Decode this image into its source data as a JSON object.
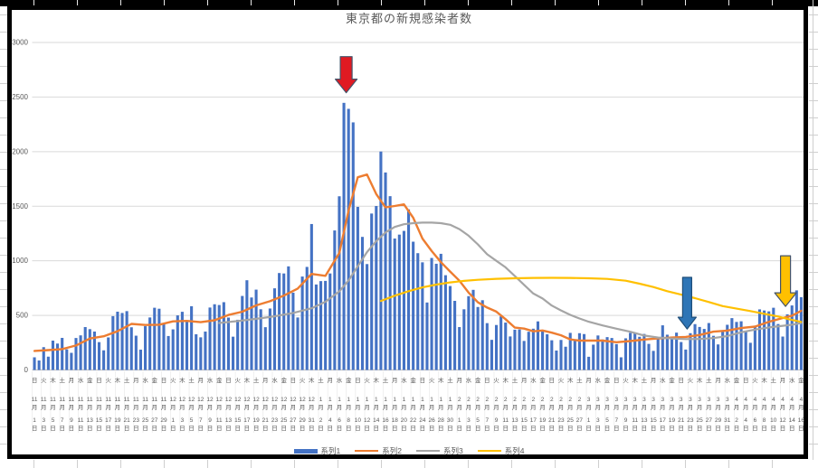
{
  "colors": {
    "grid": "#D9D9D9",
    "axis_line": "#BFBFBF",
    "text": "#595959",
    "label_separator": "#ECECEC",
    "chart_border": "#000000"
  },
  "chart_data": {
    "type": "bar+line",
    "title": "東京都の新規感染者数",
    "ylim": [
      0,
      3000
    ],
    "y_ticks": [
      0,
      500,
      1000,
      1500,
      2000,
      2500,
      3000
    ],
    "x_range": "11月1日〜4月16日 (毎日, ラベルは2日毎)",
    "legend_position": "bottom",
    "grid": "horizontal",
    "x_labels": [
      [
        "日",
        11,
        1
      ],
      [
        "火",
        11,
        3
      ],
      [
        "木",
        11,
        5
      ],
      [
        "土",
        11,
        7
      ],
      [
        "月",
        11,
        9
      ],
      [
        "水",
        11,
        11
      ],
      [
        "金",
        11,
        13
      ],
      [
        "日",
        11,
        15
      ],
      [
        "火",
        11,
        17
      ],
      [
        "木",
        11,
        19
      ],
      [
        "土",
        11,
        21
      ],
      [
        "月",
        11,
        23
      ],
      [
        "水",
        11,
        25
      ],
      [
        "金",
        11,
        27
      ],
      [
        "日",
        11,
        29
      ],
      [
        "火",
        12,
        1
      ],
      [
        "木",
        12,
        3
      ],
      [
        "土",
        12,
        5
      ],
      [
        "月",
        12,
        7
      ],
      [
        "水",
        12,
        9
      ],
      [
        "金",
        12,
        11
      ],
      [
        "日",
        12,
        13
      ],
      [
        "火",
        12,
        15
      ],
      [
        "木",
        12,
        17
      ],
      [
        "土",
        12,
        19
      ],
      [
        "月",
        12,
        21
      ],
      [
        "水",
        12,
        23
      ],
      [
        "金",
        12,
        25
      ],
      [
        "日",
        12,
        27
      ],
      [
        "火",
        12,
        29
      ],
      [
        "木",
        12,
        31
      ],
      [
        "土",
        1,
        2
      ],
      [
        "月",
        1,
        4
      ],
      [
        "水",
        1,
        6
      ],
      [
        "金",
        1,
        8
      ],
      [
        "日",
        1,
        10
      ],
      [
        "火",
        1,
        12
      ],
      [
        "木",
        1,
        14
      ],
      [
        "土",
        1,
        16
      ],
      [
        "月",
        1,
        18
      ],
      [
        "水",
        1,
        20
      ],
      [
        "金",
        1,
        22
      ],
      [
        "日",
        1,
        24
      ],
      [
        "火",
        1,
        26
      ],
      [
        "木",
        1,
        28
      ],
      [
        "土",
        1,
        30
      ],
      [
        "月",
        2,
        1
      ],
      [
        "水",
        2,
        3
      ],
      [
        "金",
        2,
        5
      ],
      [
        "日",
        2,
        7
      ],
      [
        "火",
        2,
        9
      ],
      [
        "木",
        2,
        11
      ],
      [
        "土",
        2,
        13
      ],
      [
        "月",
        2,
        15
      ],
      [
        "水",
        2,
        17
      ],
      [
        "金",
        2,
        19
      ],
      [
        "日",
        2,
        21
      ],
      [
        "火",
        2,
        23
      ],
      [
        "木",
        2,
        25
      ],
      [
        "土",
        2,
        27
      ],
      [
        "月",
        3,
        1
      ],
      [
        "水",
        3,
        3
      ],
      [
        "金",
        3,
        5
      ],
      [
        "日",
        3,
        7
      ],
      [
        "火",
        3,
        9
      ],
      [
        "木",
        3,
        11
      ],
      [
        "土",
        3,
        13
      ],
      [
        "月",
        3,
        15
      ],
      [
        "水",
        3,
        17
      ],
      [
        "金",
        3,
        19
      ],
      [
        "日",
        3,
        21
      ],
      [
        "火",
        3,
        23
      ],
      [
        "木",
        3,
        25
      ],
      [
        "土",
        3,
        27
      ],
      [
        "月",
        3,
        29
      ],
      [
        "水",
        3,
        31
      ],
      [
        "金",
        4,
        2
      ],
      [
        "日",
        4,
        4
      ],
      [
        "火",
        4,
        6
      ],
      [
        "木",
        4,
        8
      ],
      [
        "土",
        4,
        10
      ],
      [
        "月",
        4,
        12
      ],
      [
        "水",
        4,
        14
      ],
      [
        "金",
        4,
        16
      ]
    ],
    "series": [
      {
        "name": "系列1",
        "type": "bar",
        "color": "#4472C4",
        "values": [
          116,
          87,
          209,
          122,
          269,
          242,
          294,
          189,
          157,
          293,
          317,
          393,
          374,
          352,
          255,
          180,
          298,
          493,
          534,
          522,
          539,
          391,
          314,
          186,
          401,
          481,
          570,
          561,
          418,
          311,
          372,
          500,
          533,
          449,
          584,
          327,
          299,
          352,
          572,
          602,
          595,
          621,
          480,
          305,
          460,
          678,
          822,
          664,
          736,
          556,
          392,
          563,
          748,
          888,
          884,
          949,
          708,
          481,
          856,
          944,
          1337,
          783,
          814,
          816,
          884,
          1278,
          1591,
          2447,
          2392,
          2268,
          1494,
          1219,
          970,
          1433,
          1502,
          2001,
          1809,
          1592,
          1204,
          1240,
          1274,
          1471,
          1175,
          1070,
          986,
          618,
          1026,
          973,
          1064,
          868,
          769,
          633,
          393,
          556,
          676,
          734,
          577,
          639,
          429,
          276,
          412,
          491,
          434,
          307,
          369,
          371,
          266,
          350,
          378,
          445,
          353,
          327,
          272,
          178,
          275,
          213,
          340,
          270,
          337,
          329,
          121,
          232,
          316,
          279,
          301,
          293,
          237,
          116,
          290,
          340,
          335,
          304,
          330,
          239,
          175,
          300,
          409,
          323,
          303,
          342,
          256,
          187,
          337,
          420,
          394,
          376,
          430,
          313,
          234,
          364,
          414,
          475,
          440,
          446,
          355,
          249,
          399,
          555,
          545,
          537,
          570,
          421,
          306,
          510,
          591,
          729,
          667
        ]
      },
      {
        "name": "系列2",
        "type": "line",
        "color": "#ED7D31",
        "width": 2.4,
        "points": [
          [
            0,
            175
          ],
          [
            3,
            182
          ],
          [
            6,
            191
          ],
          [
            9,
            224
          ],
          [
            12,
            288
          ],
          [
            15,
            309
          ],
          [
            18,
            355
          ],
          [
            21,
            422
          ],
          [
            24,
            412
          ],
          [
            27,
            415
          ],
          [
            30,
            445
          ],
          [
            33,
            449
          ],
          [
            36,
            438
          ],
          [
            39,
            455
          ],
          [
            42,
            504
          ],
          [
            45,
            534
          ],
          [
            48,
            592
          ],
          [
            51,
            630
          ],
          [
            54,
            681
          ],
          [
            57,
            746
          ],
          [
            60,
            880
          ],
          [
            63,
            862
          ],
          [
            66,
            1072
          ],
          [
            68,
            1460
          ],
          [
            70,
            1765
          ],
          [
            72,
            1790
          ],
          [
            74,
            1611
          ],
          [
            76,
            1490
          ],
          [
            78,
            1502
          ],
          [
            80,
            1517
          ],
          [
            82,
            1395
          ],
          [
            84,
            1203
          ],
          [
            86,
            1089
          ],
          [
            88,
            987
          ],
          [
            90,
            901
          ],
          [
            92,
            818
          ],
          [
            94,
            708
          ],
          [
            96,
            620
          ],
          [
            98,
            572
          ],
          [
            100,
            535
          ],
          [
            102,
            465
          ],
          [
            104,
            388
          ],
          [
            106,
            379
          ],
          [
            108,
            354
          ],
          [
            110,
            362
          ],
          [
            112,
            342
          ],
          [
            114,
            318
          ],
          [
            116,
            280
          ],
          [
            118,
            269
          ],
          [
            120,
            269
          ],
          [
            123,
            269
          ],
          [
            126,
            254
          ],
          [
            129,
            265
          ],
          [
            132,
            279
          ],
          [
            135,
            289
          ],
          [
            138,
            297
          ],
          [
            141,
            303
          ],
          [
            144,
            320
          ],
          [
            147,
            351
          ],
          [
            150,
            361
          ],
          [
            153,
            384
          ],
          [
            156,
            397
          ],
          [
            159,
            441
          ],
          [
            162,
            476
          ],
          [
            164,
            497
          ],
          [
            166,
            542
          ]
        ]
      },
      {
        "name": "系列3",
        "type": "line",
        "color": "#A5A5A5",
        "width": 2.2,
        "points": [
          [
            40,
            430
          ],
          [
            44,
            448
          ],
          [
            48,
            468
          ],
          [
            52,
            492
          ],
          [
            56,
            522
          ],
          [
            60,
            565
          ],
          [
            63,
            625
          ],
          [
            66,
            720
          ],
          [
            68,
            820
          ],
          [
            70,
            950
          ],
          [
            72,
            1080
          ],
          [
            74,
            1180
          ],
          [
            76,
            1260
          ],
          [
            78,
            1310
          ],
          [
            80,
            1335
          ],
          [
            82,
            1345
          ],
          [
            84,
            1350
          ],
          [
            86,
            1350
          ],
          [
            88,
            1345
          ],
          [
            90,
            1330
          ],
          [
            92,
            1290
          ],
          [
            94,
            1230
          ],
          [
            96,
            1150
          ],
          [
            98,
            1060
          ],
          [
            100,
            1000
          ],
          [
            102,
            940
          ],
          [
            104,
            860
          ],
          [
            106,
            780
          ],
          [
            108,
            700
          ],
          [
            110,
            655
          ],
          [
            112,
            590
          ],
          [
            114,
            545
          ],
          [
            116,
            505
          ],
          [
            118,
            472
          ],
          [
            120,
            442
          ],
          [
            123,
            408
          ],
          [
            126,
            378
          ],
          [
            129,
            350
          ],
          [
            132,
            315
          ],
          [
            135,
            297
          ],
          [
            138,
            288
          ],
          [
            141,
            283
          ],
          [
            144,
            284
          ],
          [
            147,
            292
          ],
          [
            150,
            310
          ],
          [
            153,
            345
          ],
          [
            156,
            370
          ],
          [
            159,
            390
          ],
          [
            162,
            405
          ],
          [
            164,
            415
          ],
          [
            166,
            430
          ]
        ]
      },
      {
        "name": "系列4",
        "type": "line",
        "color": "#FFC000",
        "width": 2.2,
        "points": [
          [
            75,
            632
          ],
          [
            78,
            680
          ],
          [
            81,
            722
          ],
          [
            84,
            756
          ],
          [
            87,
            782
          ],
          [
            90,
            802
          ],
          [
            93,
            816
          ],
          [
            96,
            826
          ],
          [
            100,
            835
          ],
          [
            104,
            840
          ],
          [
            108,
            843
          ],
          [
            112,
            844
          ],
          [
            116,
            843
          ],
          [
            120,
            840
          ],
          [
            124,
            834
          ],
          [
            128,
            818
          ],
          [
            131,
            790
          ],
          [
            134,
            760
          ],
          [
            137,
            722
          ],
          [
            140,
            690
          ],
          [
            143,
            658
          ],
          [
            146,
            622
          ],
          [
            149,
            585
          ],
          [
            152,
            562
          ],
          [
            155,
            540
          ],
          [
            158,
            515
          ],
          [
            161,
            490
          ],
          [
            163,
            468
          ],
          [
            166,
            440
          ]
        ]
      }
    ],
    "annotations": [
      {
        "name": "red-arrow",
        "shape": "down-arrow",
        "fill": "#E01A22",
        "stroke": "#44546A",
        "day": 67.5,
        "top": 2870,
        "tip": 2540,
        "shaft_w": 13,
        "head_w": 24,
        "head_h": 15
      },
      {
        "name": "blue-arrow",
        "shape": "down-arrow",
        "fill": "#2E75B6",
        "stroke": "#1F4E79",
        "day": 141.3,
        "top": 848,
        "tip": 376,
        "shaft_w": 10,
        "head_w": 20,
        "head_h": 13
      },
      {
        "name": "yellow-arrow",
        "shape": "down-arrow",
        "fill": "#FFC000",
        "stroke": "#44546A",
        "day": 162.6,
        "top": 1046,
        "tip": 583,
        "shaft_w": 11,
        "head_w": 24,
        "head_h": 15
      }
    ]
  }
}
